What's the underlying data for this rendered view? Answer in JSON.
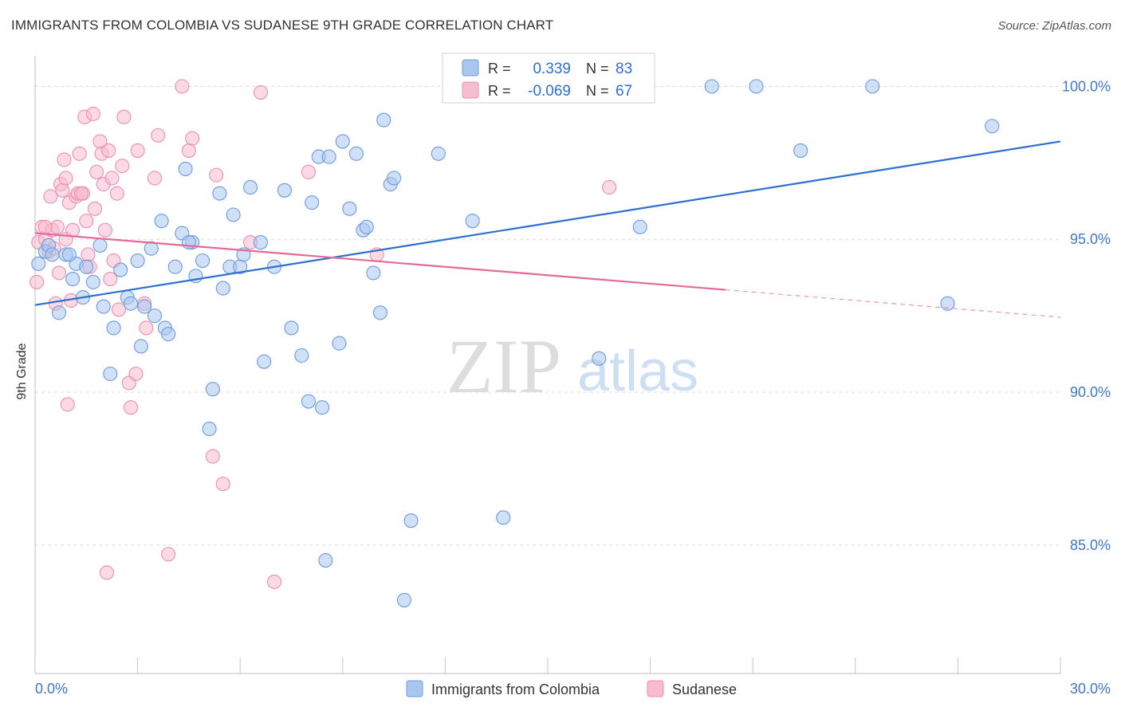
{
  "header": {
    "title": "IMMIGRANTS FROM COLOMBIA VS SUDANESE 9TH GRADE CORRELATION CHART",
    "source": "Source: ZipAtlas.com"
  },
  "watermark": {
    "zip": "ZIP",
    "atlas": "atlas"
  },
  "legend_box": {
    "rows": [
      {
        "r_label": "R =",
        "r_value": "0.339",
        "n_label": "N =",
        "n_value": "83",
        "color": "#6b9be0"
      },
      {
        "r_label": "R =",
        "r_value": "-0.069",
        "n_label": "N =",
        "n_value": "67",
        "color": "#f08db0"
      }
    ]
  },
  "colors": {
    "blue_fill": "#a9c6ef",
    "blue_stroke": "#6b9be0",
    "blue_line": "#2c6fcf",
    "pink_fill": "#f7bcd0",
    "pink_stroke": "#ec8fb0",
    "pink_line": "#e36a97",
    "axis_label": "#3f78c9",
    "grid": "#dcdcdc"
  },
  "chart_data": {
    "type": "scatter",
    "title": "IMMIGRANTS FROM COLOMBIA VS SUDANESE 9TH GRADE CORRELATION CHART",
    "xlabel": "",
    "ylabel": "9th Grade",
    "xlim": [
      0,
      30
    ],
    "ylim": [
      80.8,
      101.0
    ],
    "x_tick_labels": [
      "0.0%",
      "30.0%"
    ],
    "y_ticks": [
      85,
      90,
      95,
      100
    ],
    "y_tick_labels": [
      "85.0%",
      "90.0%",
      "95.0%",
      "100.0%"
    ],
    "grid": true,
    "legend_position": "bottom-center",
    "series": [
      {
        "name": "Immigrants from Colombia",
        "r": 0.339,
        "n": 83,
        "trend": {
          "x": [
            0,
            30
          ],
          "y": [
            92.85,
            98.2
          ],
          "dashed_from": null
        },
        "points": [
          [
            0.1,
            94.2
          ],
          [
            0.3,
            94.6
          ],
          [
            0.4,
            94.8
          ],
          [
            0.5,
            94.5
          ],
          [
            0.7,
            92.6
          ],
          [
            0.9,
            94.5
          ],
          [
            1.1,
            93.7
          ],
          [
            1.2,
            94.2
          ],
          [
            1.4,
            93.1
          ],
          [
            1.5,
            94.1
          ],
          [
            1.7,
            93.6
          ],
          [
            1.9,
            94.8
          ],
          [
            2.0,
            92.8
          ],
          [
            2.2,
            90.6
          ],
          [
            2.3,
            92.1
          ],
          [
            2.5,
            94.0
          ],
          [
            2.7,
            93.1
          ],
          [
            2.8,
            92.9
          ],
          [
            3.0,
            94.3
          ],
          [
            3.1,
            91.5
          ],
          [
            3.2,
            92.8
          ],
          [
            3.4,
            94.7
          ],
          [
            3.5,
            92.5
          ],
          [
            3.7,
            95.6
          ],
          [
            3.8,
            92.1
          ],
          [
            3.9,
            91.9
          ],
          [
            4.1,
            94.1
          ],
          [
            4.3,
            95.2
          ],
          [
            4.4,
            97.3
          ],
          [
            4.6,
            94.9
          ],
          [
            4.7,
            93.8
          ],
          [
            4.9,
            94.3
          ],
          [
            5.1,
            88.8
          ],
          [
            5.2,
            90.1
          ],
          [
            5.4,
            96.5
          ],
          [
            5.5,
            93.4
          ],
          [
            5.7,
            94.1
          ],
          [
            5.8,
            95.8
          ],
          [
            6.0,
            94.1
          ],
          [
            6.1,
            94.5
          ],
          [
            6.3,
            96.7
          ],
          [
            6.6,
            94.9
          ],
          [
            6.7,
            91.0
          ],
          [
            7.0,
            94.1
          ],
          [
            7.3,
            96.6
          ],
          [
            7.5,
            92.1
          ],
          [
            7.8,
            91.2
          ],
          [
            8.0,
            89.7
          ],
          [
            8.1,
            96.2
          ],
          [
            8.3,
            97.7
          ],
          [
            8.4,
            89.5
          ],
          [
            8.6,
            97.7
          ],
          [
            8.9,
            91.6
          ],
          [
            9.0,
            98.2
          ],
          [
            9.2,
            96.0
          ],
          [
            9.4,
            97.8
          ],
          [
            9.6,
            95.3
          ],
          [
            9.7,
            95.4
          ],
          [
            9.9,
            93.9
          ],
          [
            10.1,
            92.6
          ],
          [
            10.2,
            98.9
          ],
          [
            10.4,
            96.8
          ],
          [
            10.5,
            97.0
          ],
          [
            11.0,
            85.8
          ],
          [
            11.8,
            97.8
          ],
          [
            12.6,
            100.0
          ],
          [
            12.8,
            95.6
          ],
          [
            13.7,
            85.9
          ],
          [
            14.9,
            100.0
          ],
          [
            15.3,
            100.0
          ],
          [
            16.5,
            91.1
          ],
          [
            16.8,
            100.0
          ],
          [
            17.7,
            95.4
          ],
          [
            19.8,
            100.0
          ],
          [
            21.1,
            100.0
          ],
          [
            22.4,
            97.9
          ],
          [
            24.5,
            100.0
          ],
          [
            26.7,
            92.9
          ],
          [
            28.0,
            98.7
          ],
          [
            8.5,
            84.5
          ],
          [
            10.8,
            83.2
          ],
          [
            1.0,
            94.5
          ],
          [
            4.5,
            94.9
          ]
        ]
      },
      {
        "name": "Sudanese",
        "r": -0.069,
        "n": 67,
        "trend": {
          "x": [
            0,
            30
          ],
          "y": [
            95.2,
            92.45
          ],
          "dashed_from": 20.2
        },
        "points": [
          [
            0.05,
            93.6
          ],
          [
            0.1,
            94.9
          ],
          [
            0.2,
            95.4
          ],
          [
            0.3,
            95.0
          ],
          [
            0.4,
            94.6
          ],
          [
            0.45,
            96.4
          ],
          [
            0.5,
            95.3
          ],
          [
            0.6,
            92.9
          ],
          [
            0.65,
            95.4
          ],
          [
            0.7,
            93.9
          ],
          [
            0.75,
            96.8
          ],
          [
            0.8,
            96.6
          ],
          [
            0.85,
            97.6
          ],
          [
            0.9,
            95.0
          ],
          [
            0.95,
            89.6
          ],
          [
            1.0,
            96.2
          ],
          [
            1.05,
            93.0
          ],
          [
            1.1,
            95.3
          ],
          [
            1.2,
            96.4
          ],
          [
            1.25,
            96.5
          ],
          [
            1.3,
            97.8
          ],
          [
            1.4,
            96.5
          ],
          [
            1.45,
            99.0
          ],
          [
            1.5,
            95.6
          ],
          [
            1.55,
            94.5
          ],
          [
            1.6,
            94.1
          ],
          [
            1.7,
            99.1
          ],
          [
            1.75,
            96.0
          ],
          [
            1.8,
            97.2
          ],
          [
            1.9,
            98.2
          ],
          [
            1.95,
            97.8
          ],
          [
            2.0,
            96.8
          ],
          [
            2.05,
            95.3
          ],
          [
            2.1,
            84.1
          ],
          [
            2.15,
            97.9
          ],
          [
            2.2,
            93.7
          ],
          [
            2.25,
            97.0
          ],
          [
            2.3,
            94.3
          ],
          [
            2.4,
            96.5
          ],
          [
            2.55,
            97.4
          ],
          [
            2.6,
            99.0
          ],
          [
            2.75,
            90.3
          ],
          [
            2.8,
            89.5
          ],
          [
            2.95,
            90.6
          ],
          [
            3.0,
            97.9
          ],
          [
            3.2,
            92.9
          ],
          [
            3.25,
            92.1
          ],
          [
            3.5,
            97.0
          ],
          [
            3.6,
            98.4
          ],
          [
            3.9,
            84.7
          ],
          [
            4.3,
            100.0
          ],
          [
            4.5,
            97.9
          ],
          [
            4.6,
            98.3
          ],
          [
            5.2,
            87.9
          ],
          [
            5.3,
            97.1
          ],
          [
            5.5,
            87.0
          ],
          [
            6.3,
            94.9
          ],
          [
            6.6,
            99.8
          ],
          [
            7.0,
            83.8
          ],
          [
            8.0,
            97.2
          ],
          [
            10.0,
            94.5
          ],
          [
            16.8,
            96.7
          ],
          [
            0.3,
            95.4
          ],
          [
            0.9,
            97.0
          ],
          [
            1.35,
            96.5
          ],
          [
            2.45,
            92.7
          ],
          [
            0.55,
            94.7
          ]
        ]
      }
    ]
  }
}
